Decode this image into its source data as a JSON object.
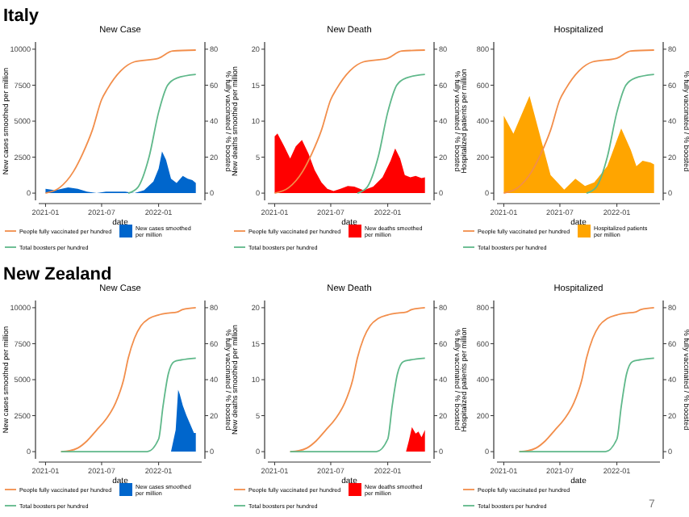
{
  "chart_data": [
    {
      "type": "area",
      "title": "New Case",
      "xlabel": "date",
      "ylabel": "New cases smoothed per million",
      "y2label": "% fully vaccinated / % boosted",
      "annotations": [
        "Italy"
      ],
      "legend": "bottom",
      "xlim": [
        "2020-12-10",
        "2022-05-20"
      ],
      "xticks": [
        "2021-01",
        "2021-07",
        "2022-01"
      ],
      "ylim": [
        -500,
        10500
      ],
      "yticks": [
        0,
        2500,
        5000,
        7500,
        10000
      ],
      "y2lim": [
        -4,
        84
      ],
      "y2ticks": [
        0,
        20,
        40,
        60,
        80
      ],
      "series": [
        {
          "name": "New cases smoothed per million",
          "color": "#0066cc",
          "x": [
            "2021-01-01",
            "2021-02-01",
            "2021-03-15",
            "2021-04-15",
            "2021-05-15",
            "2021-06-15",
            "2021-07-15",
            "2021-08-15",
            "2021-09-15",
            "2021-10-15",
            "2021-11-15",
            "2021-12-15",
            "2022-01-01",
            "2022-01-12",
            "2022-01-25",
            "2022-02-10",
            "2022-02-28",
            "2022-03-20",
            "2022-04-05",
            "2022-04-20",
            "2022-05-01"
          ],
          "values": [
            300,
            200,
            400,
            300,
            100,
            0,
            100,
            100,
            100,
            0,
            200,
            800,
            1700,
            2900,
            2300,
            1000,
            700,
            1200,
            1000,
            900,
            700
          ]
        },
        {
          "name": "People fully vaccinated per hundred",
          "type": "line",
          "axis": "y2",
          "color": "#f28e4b",
          "x": [
            "2021-01-01",
            "2021-02-15",
            "2021-04-01",
            "2021-05-01",
            "2021-06-01",
            "2021-07-01",
            "2021-07-20",
            "2021-09-01",
            "2021-10-15",
            "2022-01-01",
            "2022-02-15",
            "2022-05-01"
          ],
          "values": [
            0,
            3,
            12,
            22,
            35,
            52,
            58,
            68,
            73,
            75,
            79,
            79.5
          ]
        },
        {
          "name": "Total boosters per hundred",
          "type": "line",
          "axis": "y2",
          "color": "#5fb88a",
          "x": [
            "2021-09-25",
            "2021-10-25",
            "2021-12-01",
            "2022-01-01",
            "2022-01-30",
            "2022-03-01",
            "2022-05-01"
          ],
          "values": [
            0,
            3,
            20,
            45,
            60,
            64,
            66
          ]
        }
      ]
    },
    {
      "type": "area",
      "title": "New Death",
      "xlabel": "date",
      "ylabel": "New deaths smoothed per million",
      "y2label": "% fully vaccinated / % boosted",
      "legend": "bottom",
      "xlim": [
        "2020-12-10",
        "2022-05-20"
      ],
      "xticks": [
        "2021-01",
        "2021-07",
        "2022-01"
      ],
      "ylim": [
        -1,
        21
      ],
      "yticks": [
        0,
        5,
        10,
        15,
        20
      ],
      "y2lim": [
        -4,
        84
      ],
      "y2ticks": [
        0,
        20,
        40,
        60,
        80
      ],
      "series": [
        {
          "name": "New deaths smoothed per million",
          "color": "#ff0000",
          "x": [
            "2021-01-01",
            "2021-01-10",
            "2021-02-01",
            "2021-02-20",
            "2021-03-10",
            "2021-03-30",
            "2021-04-20",
            "2021-05-10",
            "2021-06-01",
            "2021-06-20",
            "2021-07-10",
            "2021-08-01",
            "2021-08-25",
            "2021-09-15",
            "2021-10-15",
            "2021-11-15",
            "2021-12-15",
            "2022-01-10",
            "2022-01-25",
            "2022-02-10",
            "2022-02-25",
            "2022-03-15",
            "2022-04-01",
            "2022-04-20",
            "2022-05-01"
          ],
          "values": [
            7.9,
            8.3,
            6.5,
            4.8,
            6.5,
            7.4,
            5.5,
            3.2,
            1.5,
            0.6,
            0.3,
            0.6,
            1.0,
            0.9,
            0.4,
            0.9,
            2.2,
            4.5,
            6.2,
            4.8,
            2.5,
            2.2,
            2.4,
            2.1,
            2.2
          ]
        },
        {
          "name": "People fully vaccinated per hundred",
          "type": "line",
          "axis": "y2",
          "color": "#f28e4b",
          "x": [
            "2021-01-01",
            "2021-02-15",
            "2021-04-01",
            "2021-05-01",
            "2021-06-01",
            "2021-07-01",
            "2021-07-20",
            "2021-09-01",
            "2021-10-15",
            "2022-01-01",
            "2022-02-15",
            "2022-05-01"
          ],
          "values": [
            0,
            3,
            12,
            22,
            35,
            52,
            58,
            68,
            73,
            75,
            79,
            79.5
          ]
        },
        {
          "name": "Total boosters per hundred",
          "type": "line",
          "axis": "y2",
          "color": "#5fb88a",
          "x": [
            "2021-09-25",
            "2021-10-25",
            "2021-12-01",
            "2022-01-01",
            "2022-01-30",
            "2022-03-01",
            "2022-05-01"
          ],
          "values": [
            0,
            3,
            20,
            45,
            60,
            64,
            66
          ]
        }
      ]
    },
    {
      "type": "area",
      "title": "Hospitalized",
      "xlabel": "date",
      "ylabel": "Hospitalized patients per million",
      "y2label": "% fully vaccinated / % boosted",
      "legend": "bottom",
      "xlim": [
        "2020-12-10",
        "2022-05-20"
      ],
      "xticks": [
        "2021-01",
        "2021-07",
        "2022-01"
      ],
      "ylim": [
        -40,
        840
      ],
      "yticks": [
        0,
        200,
        400,
        600,
        800
      ],
      "y2lim": [
        -4,
        84
      ],
      "y2ticks": [
        0,
        20,
        40,
        60,
        80
      ],
      "series": [
        {
          "name": "Hospitalized patients per million",
          "color": "#ffa500",
          "x": [
            "2021-01-01",
            "2021-02-01",
            "2021-03-25",
            "2021-05-01",
            "2021-06-01",
            "2021-07-15",
            "2021-08-20",
            "2021-09-20",
            "2021-10-20",
            "2021-12-01",
            "2022-01-15",
            "2022-02-15",
            "2022-03-05",
            "2022-03-25",
            "2022-04-20",
            "2022-05-01"
          ],
          "values": [
            430,
            330,
            540,
            300,
            100,
            20,
            80,
            40,
            60,
            150,
            360,
            240,
            150,
            180,
            170,
            160
          ]
        },
        {
          "name": "People fully vaccinated per hundred",
          "type": "line",
          "axis": "y2",
          "color": "#f28e4b",
          "x": [
            "2021-01-01",
            "2021-02-15",
            "2021-04-01",
            "2021-05-01",
            "2021-06-01",
            "2021-07-01",
            "2021-07-20",
            "2021-09-01",
            "2021-10-15",
            "2022-01-01",
            "2022-02-15",
            "2022-05-01"
          ],
          "values": [
            0,
            3,
            12,
            22,
            35,
            52,
            58,
            68,
            73,
            75,
            79,
            79.5
          ]
        },
        {
          "name": "Total boosters per hundred",
          "type": "line",
          "axis": "y2",
          "color": "#5fb88a",
          "x": [
            "2021-09-25",
            "2021-10-25",
            "2021-12-01",
            "2022-01-01",
            "2022-01-30",
            "2022-03-01",
            "2022-05-01"
          ],
          "values": [
            0,
            3,
            20,
            45,
            60,
            64,
            66
          ]
        }
      ]
    },
    {
      "type": "area",
      "title": "New Case",
      "xlabel": "date",
      "ylabel": "New cases smoothed per million",
      "y2label": "% fully vaccinated / % boosted",
      "annotations": [
        "New Zealand"
      ],
      "legend": "bottom",
      "xlim": [
        "2020-12-10",
        "2022-05-20"
      ],
      "xticks": [
        "2021-01",
        "2021-07",
        "2022-01"
      ],
      "ylim": [
        -500,
        10500
      ],
      "yticks": [
        0,
        2500,
        5000,
        7500,
        10000
      ],
      "y2lim": [
        -4,
        84
      ],
      "y2ticks": [
        0,
        20,
        40,
        60,
        80
      ],
      "series": [
        {
          "name": "New cases smoothed per million",
          "color": "#0066cc",
          "x": [
            "2021-02-20",
            "2022-02-10",
            "2022-02-25",
            "2022-03-05",
            "2022-03-10",
            "2022-03-20",
            "2022-04-01",
            "2022-04-15",
            "2022-04-25",
            "2022-05-01"
          ],
          "values": [
            0,
            0,
            1500,
            4300,
            4000,
            3200,
            2500,
            1800,
            1300,
            1300
          ]
        },
        {
          "name": "People fully vaccinated per hundred",
          "type": "line",
          "axis": "y2",
          "color": "#f28e4b",
          "x": [
            "2021-02-20",
            "2021-03-20",
            "2021-04-15",
            "2021-05-15",
            "2021-06-15",
            "2021-07-15",
            "2021-08-15",
            "2021-09-10",
            "2021-09-25",
            "2021-10-15",
            "2021-11-05",
            "2021-12-01",
            "2022-01-01",
            "2022-02-01",
            "2022-03-01",
            "2022-03-20",
            "2022-05-01"
          ],
          "values": [
            0,
            0.5,
            2,
            6,
            12,
            18,
            27,
            40,
            52,
            63,
            70,
            74,
            76,
            77,
            77.5,
            79,
            80
          ]
        },
        {
          "name": "Total boosters per hundred",
          "type": "line",
          "axis": "y2",
          "color": "#5fb88a",
          "x": [
            "2021-02-20",
            "2021-11-25",
            "2022-01-01",
            "2022-01-15",
            "2022-02-01",
            "2022-02-20",
            "2022-03-15",
            "2022-05-01"
          ],
          "values": [
            0,
            0,
            7,
            25,
            43,
            50,
            51,
            52
          ]
        }
      ]
    },
    {
      "type": "area",
      "title": "New Death",
      "xlabel": "date",
      "ylabel": "New deaths smoothed per million",
      "y2label": "% fully vaccinated / % boosted",
      "legend": "bottom",
      "xlim": [
        "2020-12-10",
        "2022-05-20"
      ],
      "xticks": [
        "2021-01",
        "2021-07",
        "2022-01"
      ],
      "ylim": [
        -1,
        21
      ],
      "yticks": [
        0,
        5,
        10,
        15,
        20
      ],
      "y2lim": [
        -4,
        84
      ],
      "y2ticks": [
        0,
        20,
        40,
        60,
        80
      ],
      "series": [
        {
          "name": "New deaths smoothed per million",
          "color": "#ff0000",
          "x": [
            "2021-02-20",
            "2022-03-01",
            "2022-03-10",
            "2022-03-20",
            "2022-04-01",
            "2022-04-10",
            "2022-04-20",
            "2022-05-01"
          ],
          "values": [
            0,
            0,
            1.5,
            3.4,
            2.5,
            2.8,
            2.0,
            3.0
          ]
        },
        {
          "name": "People fully vaccinated per hundred",
          "type": "line",
          "axis": "y2",
          "color": "#f28e4b",
          "x": [
            "2021-02-20",
            "2021-03-20",
            "2021-04-15",
            "2021-05-15",
            "2021-06-15",
            "2021-07-15",
            "2021-08-15",
            "2021-09-10",
            "2021-09-25",
            "2021-10-15",
            "2021-11-05",
            "2021-12-01",
            "2022-01-01",
            "2022-02-01",
            "2022-03-01",
            "2022-03-20",
            "2022-05-01"
          ],
          "values": [
            0,
            0.5,
            2,
            6,
            12,
            18,
            27,
            40,
            52,
            63,
            70,
            74,
            76,
            77,
            77.5,
            79,
            80
          ]
        },
        {
          "name": "Total boosters per hundred",
          "type": "line",
          "axis": "y2",
          "color": "#5fb88a",
          "x": [
            "2021-02-20",
            "2021-11-25",
            "2022-01-01",
            "2022-01-15",
            "2022-02-01",
            "2022-02-20",
            "2022-03-15",
            "2022-05-01"
          ],
          "values": [
            0,
            0,
            7,
            25,
            43,
            50,
            51,
            52
          ]
        }
      ]
    },
    {
      "type": "line",
      "title": "Hospitalized",
      "xlabel": "date",
      "ylabel": "Hospitalized patients per million",
      "y2label": "% fully vaccinated / % boosted",
      "annotations": [
        "7"
      ],
      "legend": "bottom",
      "xlim": [
        "2020-12-10",
        "2022-05-20"
      ],
      "xticks": [
        "2021-01",
        "2021-07",
        "2022-01"
      ],
      "ylim": [
        -40,
        840
      ],
      "yticks": [
        0,
        200,
        400,
        600,
        800
      ],
      "y2lim": [
        -4,
        84
      ],
      "y2ticks": [
        0,
        20,
        40,
        60,
        80
      ],
      "series": [
        {
          "name": "People fully vaccinated per hundred",
          "axis": "y2",
          "color": "#f28e4b",
          "x": [
            "2021-02-20",
            "2021-03-20",
            "2021-04-15",
            "2021-05-15",
            "2021-06-15",
            "2021-07-15",
            "2021-08-15",
            "2021-09-10",
            "2021-09-25",
            "2021-10-15",
            "2021-11-05",
            "2021-12-01",
            "2022-01-01",
            "2022-02-01",
            "2022-03-01",
            "2022-03-20",
            "2022-05-01"
          ],
          "values": [
            0,
            0.5,
            2,
            6,
            12,
            18,
            27,
            40,
            52,
            63,
            70,
            74,
            76,
            77,
            77.5,
            79,
            80
          ]
        },
        {
          "name": "Total boosters per hundred",
          "color": "#5fb88a",
          "x": [
            "2021-02-20",
            "2021-11-25",
            "2022-01-01",
            "2022-01-15",
            "2022-02-01",
            "2022-02-20",
            "2022-03-15",
            "2022-05-01"
          ],
          "values": [
            0,
            0,
            7,
            25,
            43,
            50,
            51,
            52
          ],
          "axis": "y2"
        }
      ]
    }
  ]
}
